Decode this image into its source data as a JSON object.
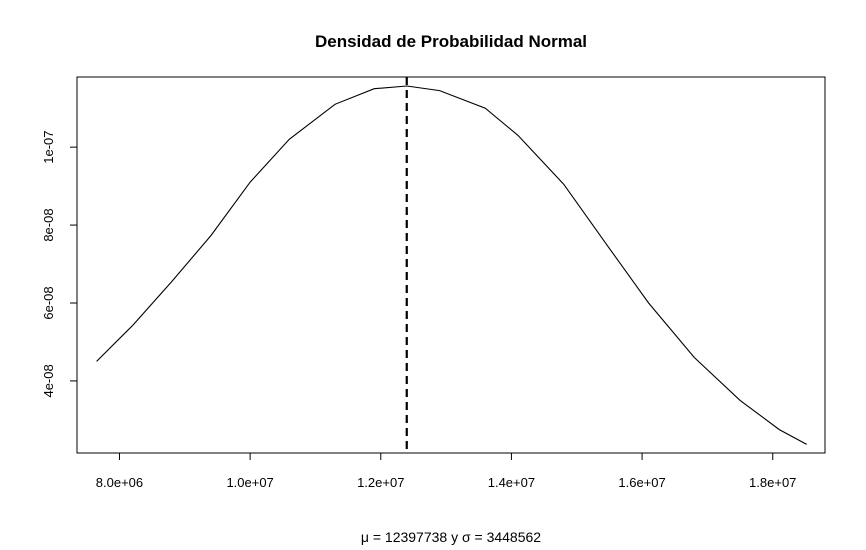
{
  "chart_data": {
    "type": "line",
    "title": "Densidad de Probabilidad Normal",
    "subtitle": "μ = 12397738 y σ = 3448562",
    "xlabel": "",
    "ylabel": "",
    "mean": 12397738,
    "sd": 3448562,
    "xlim": [
      7350000,
      18800000
    ],
    "ylim": [
      2.15e-08,
      1.18e-07
    ],
    "x_ticks": [
      {
        "value": 8000000,
        "label": "8.0e+06"
      },
      {
        "value": 10000000,
        "label": "1.0e+07"
      },
      {
        "value": 12000000,
        "label": "1.2e+07"
      },
      {
        "value": 14000000,
        "label": "1.4e+07"
      },
      {
        "value": 16000000,
        "label": "1.6e+07"
      },
      {
        "value": 18000000,
        "label": "1.8e+07"
      }
    ],
    "y_ticks": [
      {
        "value": 4e-08,
        "label": "4e-08"
      },
      {
        "value": 6e-08,
        "label": "6e-08"
      },
      {
        "value": 8e-08,
        "label": "8e-08"
      },
      {
        "value": 1e-07,
        "label": "1e-07"
      }
    ],
    "series": [
      {
        "x": [
          7650000,
          8200000,
          8800000,
          9400000,
          10000000,
          10600000,
          11300000,
          11900000,
          12400000,
          12900000,
          13600000,
          14100000,
          14800000,
          15500000,
          16100000,
          16800000,
          17500000,
          18100000,
          18520000
        ],
        "y": [
          4.5e-08,
          5.42e-08,
          6.55e-08,
          7.73e-08,
          9.1e-08,
          1.02e-07,
          1.11e-07,
          1.15e-07,
          1.157e-07,
          1.145e-07,
          1.1e-07,
          1.03e-07,
          9.05e-08,
          7.4e-08,
          6e-08,
          4.6e-08,
          3.5e-08,
          2.75e-08,
          2.37e-08
        ]
      }
    ],
    "vline": {
      "x": 12397738,
      "style": "dashed"
    }
  }
}
